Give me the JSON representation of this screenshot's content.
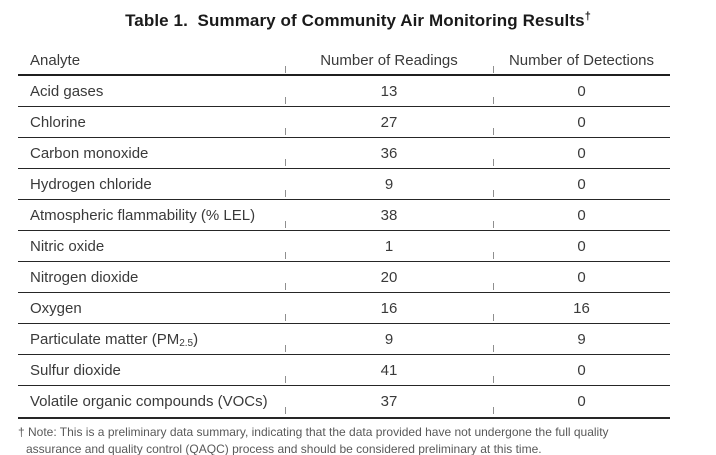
{
  "title": {
    "text": "Table 1.  Summary of Community Air Monitoring Results",
    "dagger": "†"
  },
  "table": {
    "columns": [
      "Analyte",
      "Number of Readings",
      "Number of Detections"
    ],
    "rows": [
      {
        "analyte": "Acid gases",
        "readings": "13",
        "detections": "0"
      },
      {
        "analyte": "Chlorine",
        "readings": "27",
        "detections": "0"
      },
      {
        "analyte": "Carbon monoxide",
        "readings": "36",
        "detections": "0"
      },
      {
        "analyte": "Hydrogen chloride",
        "readings": "9",
        "detections": "0"
      },
      {
        "analyte": "Atmospheric flammability (% LEL)",
        "readings": "38",
        "detections": "0"
      },
      {
        "analyte": "Nitric oxide",
        "readings": "1",
        "detections": "0"
      },
      {
        "analyte": "Nitrogen dioxide",
        "readings": "20",
        "detections": "0"
      },
      {
        "analyte": "Oxygen",
        "readings": "16",
        "detections": "16"
      },
      {
        "analyte": "Particulate matter (PM",
        "analyte_sub": "2.5",
        "analyte_end": ")",
        "readings": "9",
        "detections": "9"
      },
      {
        "analyte": "Sulfur dioxide",
        "readings": "41",
        "detections": "0"
      },
      {
        "analyte": "Volatile organic compounds (VOCs)",
        "readings": "37",
        "detections": "0"
      }
    ]
  },
  "footnote": {
    "line1": "† Note: This is a preliminary data summary, indicating that the data provided have not undergone the full quality",
    "line2": "assurance and quality control (QAQC) process and should be considered preliminary at this time."
  }
}
